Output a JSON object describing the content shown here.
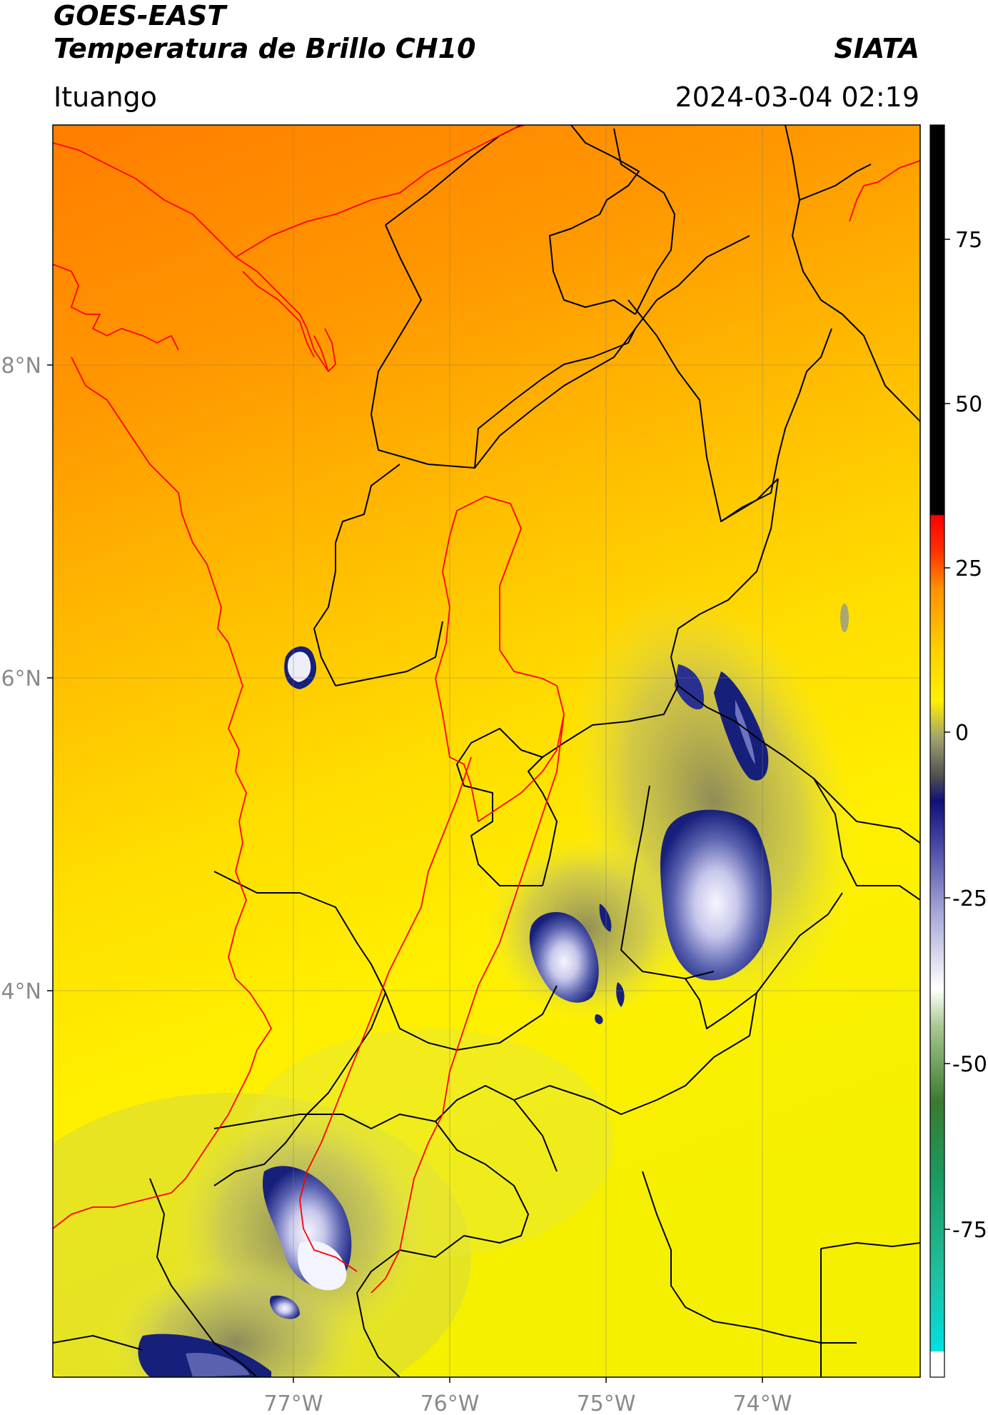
{
  "header": {
    "satellite": "GOES-EAST",
    "product": "Temperatura de Brillo CH10",
    "organization": "SIATA",
    "region": "Ituango",
    "datetime": "2024-03-04 02:19"
  },
  "map": {
    "lon_ticks": [
      "77°W",
      "76°W",
      "75°W",
      "74°W"
    ],
    "lat_ticks": [
      "8°N",
      "6°N",
      "4°N"
    ],
    "colors": {
      "warm_orange": "#ff8a00",
      "mid_orange": "#ffb000",
      "yellow": "#ffe800",
      "olive": "#c8c870",
      "deep_blue": "#16207a",
      "white": "#f4f4ff",
      "border_black": "#000000",
      "border_red": "#ff0000"
    }
  },
  "colorbar": {
    "ticks": [
      "75",
      "50",
      "25",
      "0",
      "-25",
      "-50",
      "-75"
    ]
  }
}
